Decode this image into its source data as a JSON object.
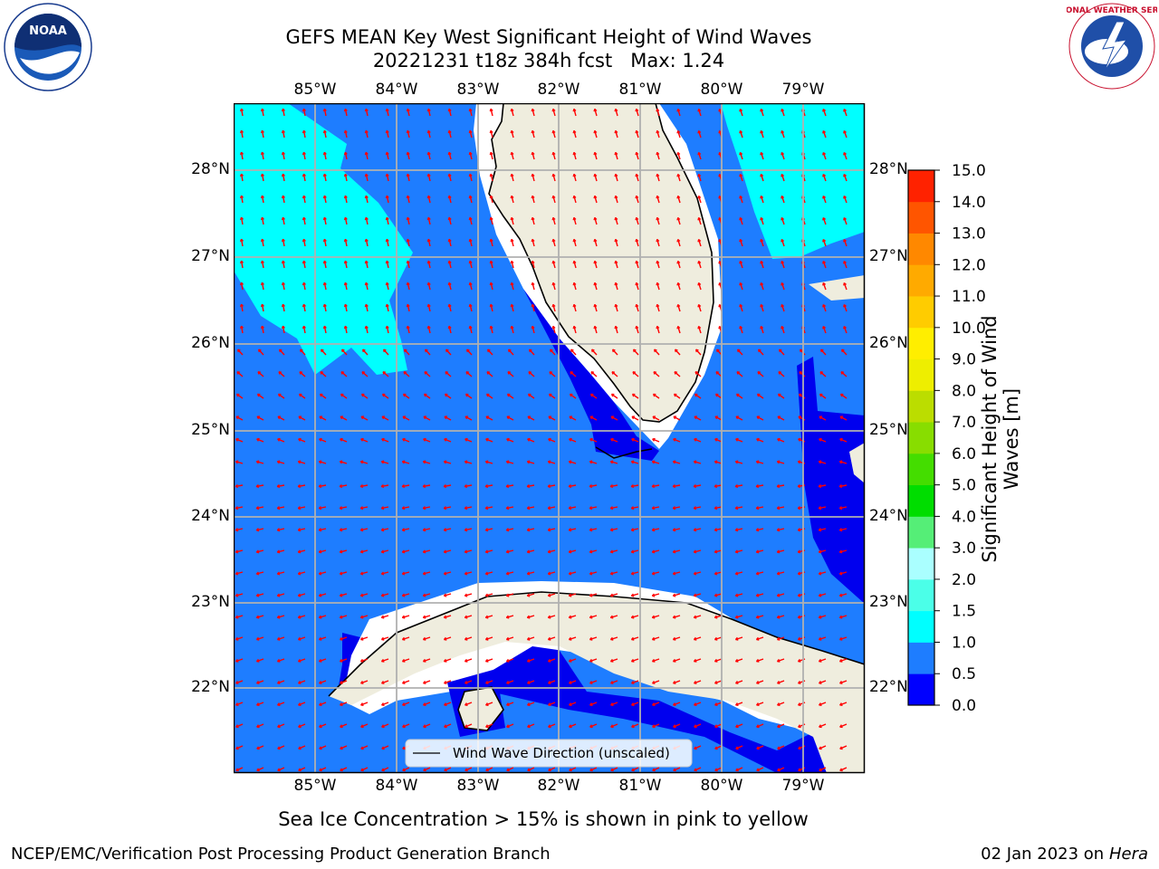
{
  "header": {
    "title": "GEFS MEAN Key West Significant Height of Wind Waves",
    "subtitle": "20221231 t18z 384h fcst   Max: 1.24"
  },
  "logos": {
    "left": {
      "text": "NOAA",
      "ring_text": "NATIONAL OCEANIC AND ATMOSPHERIC ADMINISTRATION · U.S. DEPARTMENT OF COMMERCE"
    },
    "right": {
      "ring_text": "NATIONAL WEATHER SERVICE"
    }
  },
  "map": {
    "lon_ticks": [
      "85°W",
      "84°W",
      "83°W",
      "82°W",
      "81°W",
      "80°W",
      "79°W"
    ],
    "lat_ticks": [
      "28°N",
      "27°N",
      "26°N",
      "25°N",
      "24°N",
      "23°N",
      "22°N"
    ],
    "legend_label": "Wind Wave Direction (unscaled)",
    "colors": {
      "water_low": "#0000ee",
      "water_mid": "#1e7dff",
      "water_high": "#00ffff",
      "land": "#efedde",
      "arrow": "#ff0000",
      "grid": "#b0b0b0"
    }
  },
  "colorbar": {
    "label": "Significant Height of Wind Waves [m]",
    "levels": [
      "0.0",
      "0.5",
      "1.0",
      "1.5",
      "2.0",
      "3.0",
      "4.0",
      "5.0",
      "6.0",
      "7.0",
      "8.0",
      "9.0",
      "10.0",
      "11.0",
      "12.0",
      "13.0",
      "14.0",
      "15.0"
    ],
    "colors": [
      "#0000ff",
      "#1e7dff",
      "#00ffff",
      "#4bffe8",
      "#aaffff",
      "#55ee77",
      "#00dd00",
      "#44dd00",
      "#88dd00",
      "#bbdd00",
      "#eeee00",
      "#ffee00",
      "#ffcc00",
      "#ffaa00",
      "#ff8800",
      "#ff5500",
      "#ff2200"
    ]
  },
  "footer": {
    "note": "Sea Ice Concentration > 15% is shown in pink to yellow",
    "credit": "NCEP/EMC/Verification Post Processing Product Generation Branch",
    "date": "02 Jan 2023 on",
    "host": "Hera"
  }
}
